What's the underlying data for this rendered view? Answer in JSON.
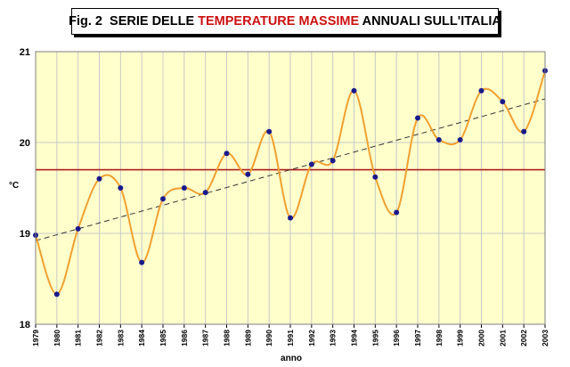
{
  "title": {
    "prefix": "Fig. 2  SERIE DELLE ",
    "highlight": "TEMPERATURE MASSIME",
    "suffix": " ANNUALI SULL'ITALIA",
    "highlight_color": "#cc1111"
  },
  "chart_data": {
    "type": "line",
    "xlabel": "anno",
    "ylabel": "°C",
    "ylim": [
      18,
      21
    ],
    "yticks": [
      18,
      19,
      20,
      21
    ],
    "grid": true,
    "x": [
      "1979",
      "1980",
      "1981",
      "1982",
      "1983",
      "1984",
      "1985",
      "1986",
      "1987",
      "1988",
      "1989",
      "1990",
      "1991",
      "1992",
      "1993",
      "1994",
      "1995",
      "1996",
      "1997",
      "1998",
      "1999",
      "2000",
      "2001",
      "2002",
      "2003"
    ],
    "series": [
      {
        "values": [
          18.98,
          18.33,
          19.05,
          19.6,
          19.5,
          18.68,
          19.38,
          19.5,
          19.45,
          19.88,
          19.65,
          20.12,
          19.17,
          19.76,
          19.8,
          20.57,
          19.62,
          19.23,
          20.27,
          20.03,
          20.03,
          20.57,
          20.45,
          20.12,
          20.79
        ],
        "line_color": "#f0a030",
        "marker_color": "#1a1a8c"
      }
    ],
    "reference_line": {
      "value": 19.7,
      "color": "#b01c1c"
    },
    "trend_line": {
      "start": 18.92,
      "end": 20.48,
      "color": "#333333",
      "style": "dashed"
    },
    "colors": {
      "plot_background": "#ffffcc",
      "grid": "#c8c8c8"
    }
  }
}
